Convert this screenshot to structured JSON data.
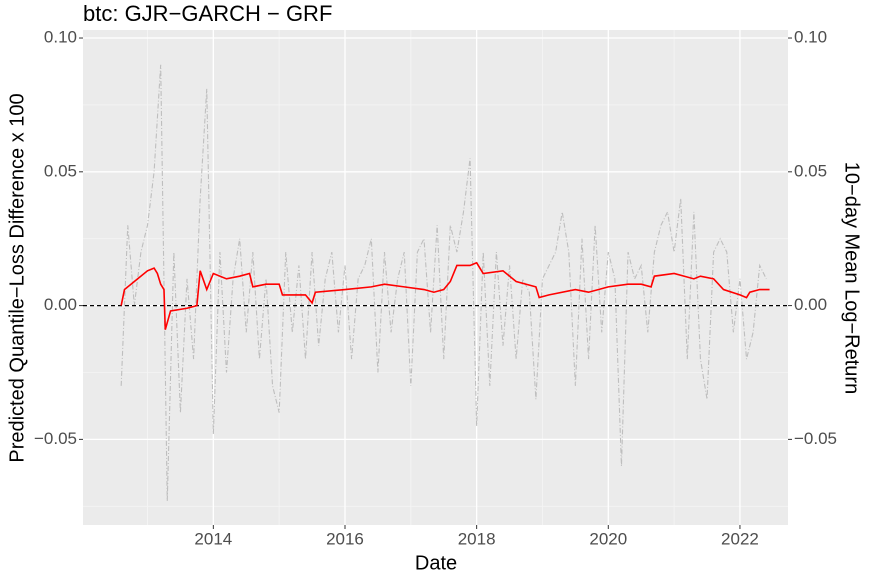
{
  "chart_data": {
    "type": "line",
    "title": "btc: GJR−GARCH − GRF",
    "x_label": "Date",
    "y_label": "Predicted Quantile−Loss Difference x 100",
    "y2_label": "10−day Mean Log−Return",
    "xlim": [
      2012.02,
      2022.73
    ],
    "xticks": [
      2014,
      2016,
      2018,
      2020,
      2022
    ],
    "ylim": [
      -0.082,
      0.103
    ],
    "yticks": [
      {
        "value": -0.05,
        "label": "−0.05"
      },
      {
        "value": 0,
        "label": "0.00"
      },
      {
        "value": 0.05,
        "label": "0.05"
      },
      {
        "value": 0.1,
        "label": "0.10"
      }
    ],
    "y2lim": [
      -0.082,
      0.103
    ],
    "y2ticks": [
      {
        "value": -0.05,
        "label": "−0.05"
      },
      {
        "value": 0,
        "label": "0.00"
      },
      {
        "value": 0.05,
        "label": "0.05"
      },
      {
        "value": 0.1,
        "label": "0.10"
      }
    ],
    "hline": 0,
    "grid": true,
    "series": [
      {
        "color": "#bebebe",
        "dashed": true,
        "axis": "y2",
        "x": [
          2012.6,
          2012.7,
          2012.8,
          2012.9,
          2013.0,
          2013.1,
          2013.2,
          2013.3,
          2013.4,
          2013.5,
          2013.6,
          2013.7,
          2013.8,
          2013.9,
          2014.0,
          2014.1,
          2014.2,
          2014.3,
          2014.4,
          2014.5,
          2014.6,
          2014.7,
          2014.8,
          2014.9,
          2015.0,
          2015.1,
          2015.2,
          2015.3,
          2015.4,
          2015.5,
          2015.6,
          2015.7,
          2015.8,
          2015.9,
          2016.0,
          2016.1,
          2016.2,
          2016.3,
          2016.4,
          2016.5,
          2016.6,
          2016.7,
          2016.8,
          2016.9,
          2017.0,
          2017.1,
          2017.2,
          2017.3,
          2017.4,
          2017.5,
          2017.6,
          2017.7,
          2017.8,
          2017.9,
          2018.0,
          2018.1,
          2018.2,
          2018.3,
          2018.4,
          2018.5,
          2018.6,
          2018.7,
          2018.8,
          2018.9,
          2019.0,
          2019.1,
          2019.2,
          2019.3,
          2019.4,
          2019.5,
          2019.6,
          2019.7,
          2019.8,
          2019.9,
          2020.0,
          2020.1,
          2020.2,
          2020.3,
          2020.4,
          2020.5,
          2020.6,
          2020.7,
          2020.8,
          2020.9,
          2021.0,
          2021.1,
          2021.2,
          2021.3,
          2021.4,
          2021.5,
          2021.6,
          2021.7,
          2021.8,
          2021.9,
          2022.0,
          2022.1,
          2022.2,
          2022.3,
          2022.4
        ],
        "values": [
          -0.03,
          0.03,
          0.0,
          0.02,
          0.03,
          0.05,
          0.09,
          -0.073,
          0.02,
          -0.04,
          0.01,
          -0.02,
          0.04,
          0.081,
          -0.048,
          0.02,
          -0.025,
          0.01,
          0.025,
          -0.01,
          0.02,
          -0.02,
          0.01,
          -0.03,
          -0.04,
          0.02,
          -0.01,
          0.015,
          -0.02,
          0.02,
          -0.015,
          0.01,
          0.02,
          -0.01,
          0.015,
          -0.02,
          0.01,
          0.015,
          0.025,
          -0.025,
          0.02,
          -0.01,
          0.01,
          0.02,
          -0.03,
          0.02,
          0.025,
          -0.01,
          0.03,
          -0.02,
          0.03,
          0.02,
          0.035,
          0.055,
          -0.045,
          0.02,
          -0.03,
          0.02,
          -0.015,
          0.015,
          -0.02,
          0.01,
          0.005,
          -0.035,
          0.01,
          0.015,
          0.02,
          0.035,
          0.02,
          -0.03,
          0.025,
          -0.02,
          0.03,
          -0.01,
          0.02,
          0.01,
          -0.06,
          0.02,
          0.01,
          0.015,
          -0.01,
          0.02,
          0.03,
          0.035,
          0.02,
          0.04,
          -0.02,
          0.035,
          -0.02,
          -0.035,
          0.02,
          0.025,
          0.02,
          -0.01,
          0.01,
          -0.02,
          -0.01,
          0.015,
          0.01
        ]
      },
      {
        "color": "#ff0000",
        "x": [
          2012.6,
          2012.65,
          2012.8,
          2013.0,
          2013.1,
          2013.15,
          2013.2,
          2013.25,
          2013.27,
          2013.35,
          2013.6,
          2013.75,
          2013.8,
          2013.9,
          2014.0,
          2014.2,
          2014.4,
          2014.55,
          2014.6,
          2014.8,
          2015.0,
          2015.05,
          2015.4,
          2015.5,
          2015.55,
          2016.0,
          2016.4,
          2016.6,
          2016.9,
          2017.2,
          2017.35,
          2017.5,
          2017.6,
          2017.7,
          2017.9,
          2018.0,
          2018.1,
          2018.4,
          2018.6,
          2018.9,
          2018.95,
          2019.1,
          2019.5,
          2019.7,
          2020.0,
          2020.3,
          2020.5,
          2020.65,
          2020.7,
          2021.0,
          2021.3,
          2021.4,
          2021.6,
          2021.75,
          2022.0,
          2022.1,
          2022.15,
          2022.3,
          2022.45
        ],
        "values": [
          0.0,
          0.006,
          0.009,
          0.013,
          0.014,
          0.012,
          0.008,
          0.006,
          -0.009,
          -0.002,
          -0.001,
          0.0,
          0.013,
          0.006,
          0.012,
          0.01,
          0.011,
          0.012,
          0.007,
          0.008,
          0.008,
          0.004,
          0.004,
          0.001,
          0.005,
          0.006,
          0.007,
          0.008,
          0.007,
          0.006,
          0.005,
          0.006,
          0.009,
          0.015,
          0.015,
          0.016,
          0.012,
          0.013,
          0.009,
          0.007,
          0.003,
          0.004,
          0.006,
          0.005,
          0.007,
          0.008,
          0.008,
          0.007,
          0.011,
          0.012,
          0.01,
          0.011,
          0.01,
          0.006,
          0.004,
          0.003,
          0.005,
          0.006,
          0.006
        ]
      }
    ]
  }
}
